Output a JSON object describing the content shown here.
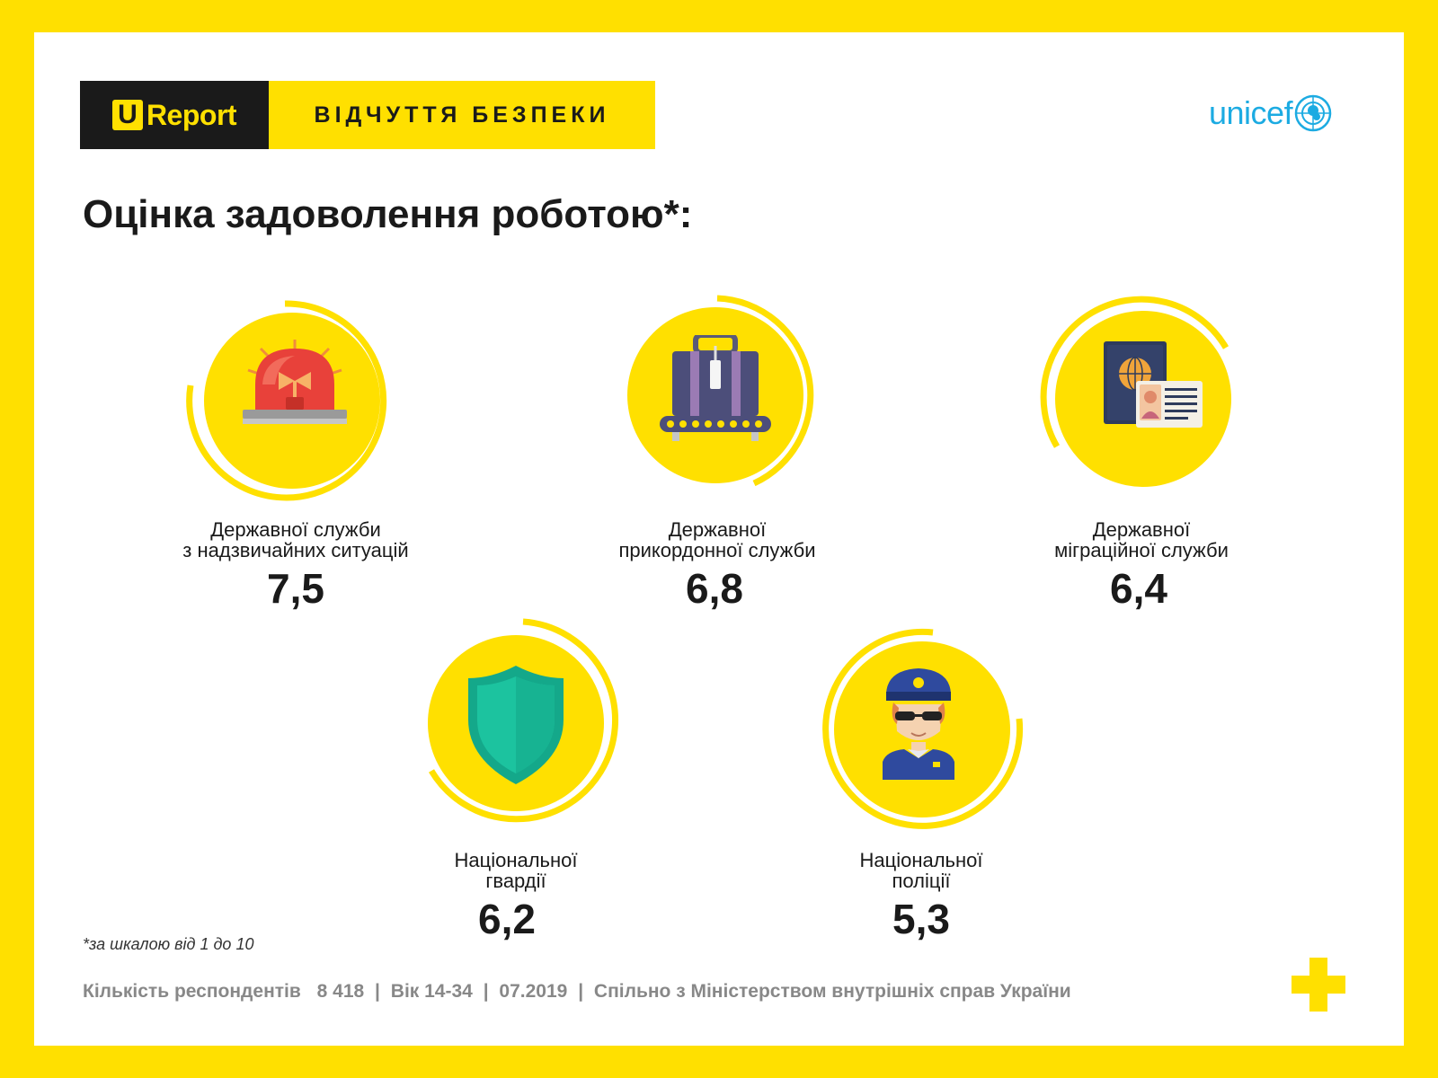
{
  "header": {
    "brand_prefix": "U",
    "brand_word": "Report",
    "banner": "ВІДЧУТТЯ БЕЗПЕКИ",
    "partner": "unicef"
  },
  "title": "Оцінка задоволення роботою*:",
  "items": [
    {
      "line1": "Державної служби",
      "line2": "з надзвичайних ситуацій",
      "value": "7,5",
      "icon": "siren-icon"
    },
    {
      "line1": "Державної",
      "line2": "прикордонної служби",
      "value": "6,8",
      "icon": "luggage-conveyor-icon"
    },
    {
      "line1": "Державної",
      "line2": "міграційної служби",
      "value": "6,4",
      "icon": "passport-icon"
    },
    {
      "line1": "Національної",
      "line2": "гвардії",
      "value": "6,2",
      "icon": "shield-icon"
    },
    {
      "line1": "Національної",
      "line2": "поліції",
      "value": "5,3",
      "icon": "police-officer-icon"
    }
  ],
  "footnote": "*за шкалою від 1 до 10",
  "footer": {
    "respondents_label": "Кількість респондентів",
    "respondents_value": "8 418",
    "age": "Вік 14-34",
    "date": "07.2019",
    "partner_text": "Спільно з Міністерством внутрішніх справ України"
  },
  "colors": {
    "brand_yellow": "#FFE000",
    "dark": "#1a1a1a",
    "unicef_blue": "#1CABE2"
  }
}
